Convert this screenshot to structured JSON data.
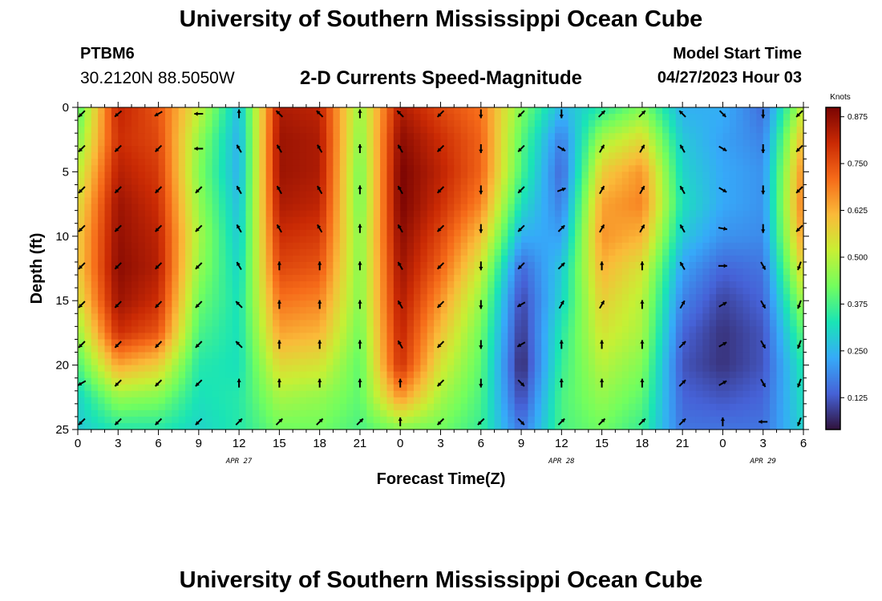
{
  "header": {
    "title": "University of Southern Mississippi Ocean Cube",
    "station_id": "PTBM6",
    "coords": "30.2120N  88.5050W",
    "subtitle": "2-D Currents Speed-Magnitude",
    "model_start_label": "Model Start Time",
    "model_start_value": "04/27/2023 Hour 03"
  },
  "footer": {
    "title": "University of Southern Mississippi Ocean Cube"
  },
  "chart_data": {
    "type": "heatmap",
    "title": "2-D Currents Speed-Magnitude",
    "xlabel": "Forecast Time(Z)",
    "ylabel": "Depth (ft)",
    "x_tick_labels": [
      "0",
      "3",
      "6",
      "9",
      "12",
      "15",
      "18",
      "21",
      "0",
      "3",
      "6",
      "9",
      "12",
      "15",
      "18",
      "21",
      "0",
      "3",
      "6"
    ],
    "x_hours_since_start": [
      0,
      3,
      6,
      9,
      12,
      15,
      18,
      21,
      24,
      27,
      30,
      33,
      36,
      39,
      42,
      45,
      48,
      51,
      54
    ],
    "date_labels": [
      {
        "text": "APR 27",
        "hour": 12
      },
      {
        "text": "APR 28",
        "hour": 36
      },
      {
        "text": "APR 29",
        "hour": 51
      }
    ],
    "y_ticks": [
      0,
      5,
      10,
      15,
      20,
      25
    ],
    "ylim": [
      0,
      25
    ],
    "xlim_hours": [
      0,
      54
    ],
    "colorbar": {
      "unit_label": "Knots",
      "tick_labels": [
        "0.875",
        "0.750",
        "0.625",
        "0.500",
        "0.375",
        "0.250",
        "0.125"
      ],
      "range": [
        0.04,
        0.9
      ],
      "colors": [
        "#30123b",
        "#4662d7",
        "#36aaf9",
        "#1ae4b6",
        "#72fe5e",
        "#c8ef34",
        "#faba39",
        "#f66b19",
        "#ca2a04",
        "#7a0403"
      ]
    },
    "speed_grid_hours": [
      0,
      3,
      6,
      9,
      12,
      15,
      18,
      21,
      24,
      27,
      30,
      33,
      36,
      39,
      42,
      45,
      48,
      51,
      54
    ],
    "speed_grid_depths": [
      0,
      2.5,
      5,
      7.5,
      10,
      12.5,
      15,
      17.5,
      20,
      22.5,
      25
    ],
    "speed_knots": [
      [
        0.38,
        0.82,
        0.74,
        0.52,
        0.26,
        0.84,
        0.82,
        0.46,
        0.84,
        0.76,
        0.7,
        0.44,
        0.25,
        0.34,
        0.44,
        0.24,
        0.24,
        0.15,
        0.52
      ],
      [
        0.44,
        0.8,
        0.76,
        0.46,
        0.24,
        0.86,
        0.84,
        0.44,
        0.88,
        0.8,
        0.72,
        0.4,
        0.17,
        0.48,
        0.56,
        0.28,
        0.22,
        0.18,
        0.62
      ],
      [
        0.5,
        0.83,
        0.78,
        0.44,
        0.24,
        0.86,
        0.84,
        0.42,
        0.9,
        0.82,
        0.72,
        0.38,
        0.14,
        0.58,
        0.66,
        0.3,
        0.23,
        0.2,
        0.68
      ],
      [
        0.55,
        0.86,
        0.8,
        0.46,
        0.26,
        0.84,
        0.82,
        0.42,
        0.9,
        0.8,
        0.68,
        0.32,
        0.17,
        0.64,
        0.68,
        0.32,
        0.23,
        0.2,
        0.7
      ],
      [
        0.58,
        0.87,
        0.82,
        0.48,
        0.28,
        0.8,
        0.78,
        0.44,
        0.88,
        0.76,
        0.6,
        0.24,
        0.22,
        0.66,
        0.62,
        0.28,
        0.2,
        0.19,
        0.66
      ],
      [
        0.58,
        0.88,
        0.83,
        0.46,
        0.3,
        0.76,
        0.74,
        0.44,
        0.86,
        0.72,
        0.52,
        0.14,
        0.28,
        0.62,
        0.54,
        0.22,
        0.14,
        0.16,
        0.58
      ],
      [
        0.54,
        0.86,
        0.8,
        0.42,
        0.32,
        0.7,
        0.68,
        0.44,
        0.84,
        0.66,
        0.46,
        0.1,
        0.3,
        0.58,
        0.5,
        0.18,
        0.1,
        0.14,
        0.48
      ],
      [
        0.46,
        0.8,
        0.74,
        0.38,
        0.32,
        0.64,
        0.62,
        0.42,
        0.82,
        0.6,
        0.42,
        0.08,
        0.34,
        0.54,
        0.48,
        0.14,
        0.08,
        0.12,
        0.4
      ],
      [
        0.38,
        0.64,
        0.58,
        0.34,
        0.32,
        0.56,
        0.54,
        0.4,
        0.8,
        0.54,
        0.4,
        0.06,
        0.36,
        0.5,
        0.44,
        0.12,
        0.08,
        0.12,
        0.34
      ],
      [
        0.3,
        0.46,
        0.44,
        0.32,
        0.34,
        0.48,
        0.46,
        0.4,
        0.66,
        0.48,
        0.38,
        0.1,
        0.38,
        0.46,
        0.4,
        0.14,
        0.12,
        0.14,
        0.32
      ],
      [
        0.28,
        0.34,
        0.34,
        0.3,
        0.34,
        0.42,
        0.42,
        0.38,
        0.44,
        0.42,
        0.36,
        0.16,
        0.38,
        0.42,
        0.36,
        0.16,
        0.16,
        0.16,
        0.3
      ]
    ],
    "arrow_hours": [
      0,
      3,
      6,
      9,
      12,
      15,
      18,
      21,
      24,
      27,
      30,
      33,
      36,
      39,
      42,
      45,
      48,
      51,
      54
    ],
    "arrow_depths": [
      0.5,
      3.2,
      6.4,
      9.4,
      12.3,
      15.3,
      18.4,
      21.4,
      24.4
    ],
    "arrow_directions_deg": [
      [
        225,
        230,
        240,
        270,
        0,
        315,
        315,
        0,
        315,
        225,
        180,
        225,
        180,
        45,
        45,
        315,
        135,
        180,
        225
      ],
      [
        225,
        225,
        225,
        270,
        330,
        330,
        330,
        0,
        330,
        225,
        180,
        225,
        120,
        30,
        30,
        330,
        120,
        180,
        225
      ],
      [
        225,
        225,
        225,
        225,
        330,
        330,
        330,
        0,
        330,
        225,
        180,
        225,
        70,
        30,
        30,
        330,
        120,
        180,
        225
      ],
      [
        225,
        225,
        225,
        225,
        330,
        330,
        330,
        0,
        330,
        225,
        180,
        225,
        45,
        30,
        30,
        330,
        100,
        180,
        225
      ],
      [
        225,
        225,
        225,
        225,
        330,
        0,
        0,
        0,
        330,
        225,
        180,
        225,
        45,
        0,
        0,
        330,
        90,
        150,
        200
      ],
      [
        225,
        225,
        225,
        225,
        315,
        0,
        0,
        0,
        330,
        225,
        180,
        240,
        30,
        30,
        0,
        30,
        60,
        150,
        200
      ],
      [
        225,
        225,
        225,
        225,
        315,
        0,
        0,
        0,
        330,
        225,
        180,
        240,
        0,
        0,
        0,
        45,
        60,
        150,
        200
      ],
      [
        240,
        225,
        225,
        225,
        0,
        0,
        0,
        0,
        0,
        225,
        180,
        135,
        0,
        0,
        0,
        45,
        60,
        150,
        200
      ],
      [
        225,
        225,
        225,
        225,
        45,
        45,
        45,
        45,
        0,
        225,
        225,
        135,
        45,
        45,
        45,
        45,
        0,
        270,
        200
      ]
    ]
  }
}
